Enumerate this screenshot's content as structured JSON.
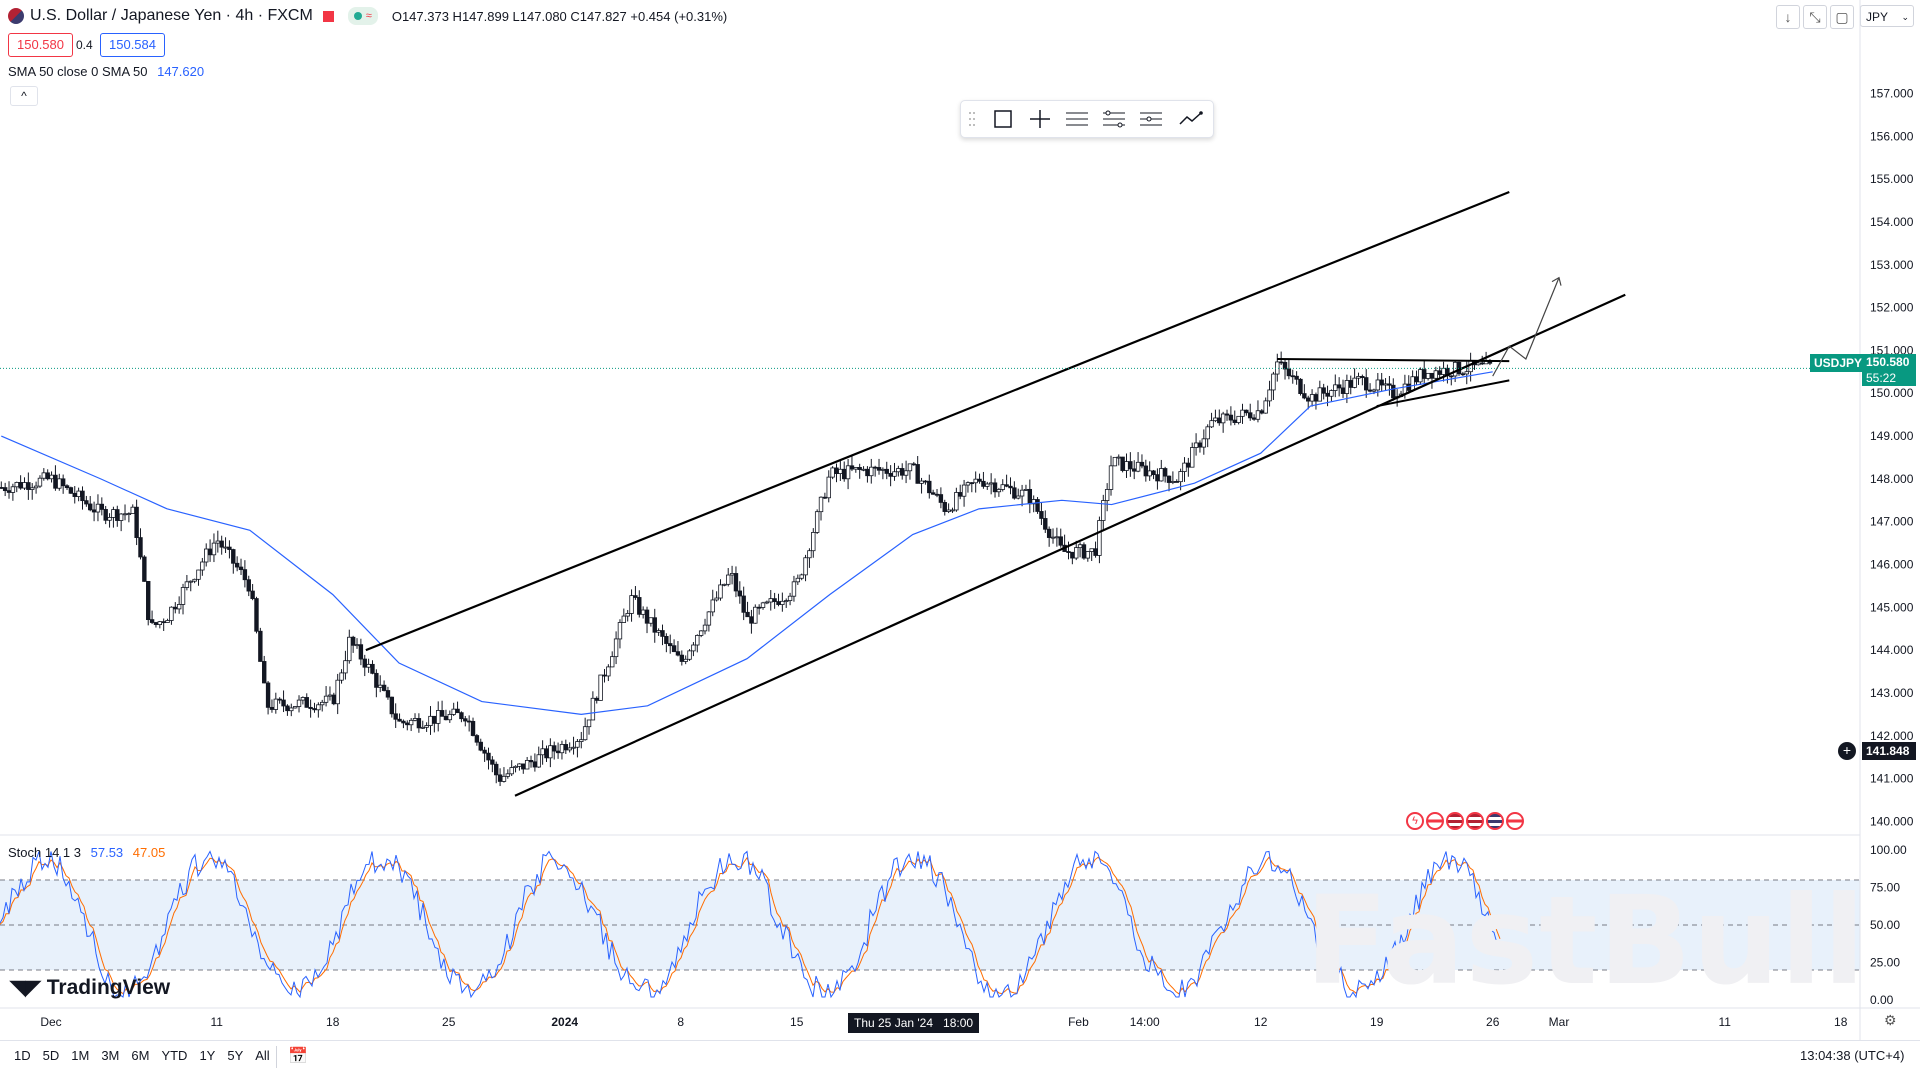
{
  "header": {
    "symbol_title": "U.S. Dollar / Japanese Yen · 4h · FXCM",
    "ohlc": "O147.373  H147.899  L147.080  C147.827  +0.454 (+0.31%)",
    "bid": "150.580",
    "spread": "0.4",
    "ask": "150.584",
    "indicator_label": "SMA 50 close 0 SMA 50",
    "indicator_value": "147.620"
  },
  "currency_select": "JPY",
  "price_badge": {
    "symbol": "USDJPY",
    "price": "150.580",
    "countdown": "55:22"
  },
  "crosshair_badge": "141.848",
  "stoch": {
    "label": "Stoch 14 1 3",
    "k": "57.53",
    "d": "47.05"
  },
  "time_badge": "Thu 25 Jan '24   18:00",
  "range_buttons": [
    "1D",
    "5D",
    "1M",
    "3M",
    "6M",
    "YTD",
    "1Y",
    "5Y",
    "All"
  ],
  "clock": "13:04:38 (UTC+4)",
  "logo": "TradingView",
  "watermark": "FastBull",
  "colors": {
    "up": "#131722",
    "sma": "#2962ff",
    "last_price": "#089981",
    "stoch_k": "#2962ff",
    "stoch_d": "#ff6d00"
  },
  "chart_data": [
    {
      "type": "candlestick",
      "title": "U.S. Dollar / Japanese Yen · 4h · FXCM",
      "ylim": [
        139.8,
        158.6
      ],
      "y_ticks": [
        "140.000",
        "141.000",
        "142.000",
        "143.000",
        "144.000",
        "145.000",
        "146.000",
        "147.000",
        "148.000",
        "149.000",
        "150.000",
        "151.000",
        "152.000",
        "153.000",
        "154.000",
        "155.000",
        "156.000",
        "157.000"
      ],
      "x_ticks": [
        "Dec",
        "11",
        "18",
        "25",
        "2024",
        "8",
        "15",
        "22",
        "Feb",
        "14:00",
        "12",
        "19",
        "26",
        "Mar",
        "11",
        "18"
      ],
      "price_path": [
        {
          "x": "Nov 28",
          "y": 147.8
        },
        {
          "x": "Dec 1",
          "y": 148.0
        },
        {
          "x": "Dec 4",
          "y": 147.2
        },
        {
          "x": "Dec 6",
          "y": 147.2
        },
        {
          "x": "Dec 7",
          "y": 144.5
        },
        {
          "x": "Dec 8",
          "y": 144.8
        },
        {
          "x": "Dec 11",
          "y": 146.6
        },
        {
          "x": "Dec 13",
          "y": 145.5
        },
        {
          "x": "Dec 14",
          "y": 142.7
        },
        {
          "x": "Dec 18",
          "y": 142.8
        },
        {
          "x": "Dec 19",
          "y": 144.2
        },
        {
          "x": "Dec 20",
          "y": 143.7
        },
        {
          "x": "Dec 22",
          "y": 142.3
        },
        {
          "x": "Dec 26",
          "y": 142.5
        },
        {
          "x": "Dec 28",
          "y": 141.0
        },
        {
          "x": "Jan 2",
          "y": 142.0
        },
        {
          "x": "Jan 5",
          "y": 145.2
        },
        {
          "x": "Jan 8",
          "y": 143.7
        },
        {
          "x": "Jan 11",
          "y": 145.8
        },
        {
          "x": "Jan 12",
          "y": 144.7
        },
        {
          "x": "Jan 15",
          "y": 145.5
        },
        {
          "x": "Jan 17",
          "y": 148.1
        },
        {
          "x": "Jan 19",
          "y": 148.2
        },
        {
          "x": "Jan 22",
          "y": 148.2
        },
        {
          "x": "Jan 24",
          "y": 147.3
        },
        {
          "x": "Jan 26",
          "y": 148.0
        },
        {
          "x": "Jan 29",
          "y": 147.6
        },
        {
          "x": "Jan 31",
          "y": 146.3
        },
        {
          "x": "Feb 2",
          "y": 146.3
        },
        {
          "x": "Feb 3",
          "y": 148.4
        },
        {
          "x": "Feb 7",
          "y": 148.0
        },
        {
          "x": "Feb 9",
          "y": 149.3
        },
        {
          "x": "Feb 12",
          "y": 149.6
        },
        {
          "x": "Feb 13",
          "y": 150.7
        },
        {
          "x": "Feb 15",
          "y": 149.9
        },
        {
          "x": "Feb 18",
          "y": 150.3
        },
        {
          "x": "Feb 20",
          "y": 150.0
        },
        {
          "x": "Feb 22",
          "y": 150.5
        },
        {
          "x": "Feb 25",
          "y": 150.6
        },
        {
          "x": "Feb 26",
          "y": 150.58
        }
      ],
      "sma50": [
        {
          "x": "Nov 28",
          "y": 149.0
        },
        {
          "x": "Dec 4",
          "y": 148.0
        },
        {
          "x": "Dec 8",
          "y": 147.3
        },
        {
          "x": "Dec 13",
          "y": 146.8
        },
        {
          "x": "Dec 18",
          "y": 145.3
        },
        {
          "x": "Dec 22",
          "y": 143.7
        },
        {
          "x": "Dec 27",
          "y": 142.8
        },
        {
          "x": "Jan 2",
          "y": 142.5
        },
        {
          "x": "Jan 6",
          "y": 142.7
        },
        {
          "x": "Jan 12",
          "y": 143.8
        },
        {
          "x": "Jan 17",
          "y": 145.3
        },
        {
          "x": "Jan 22",
          "y": 146.7
        },
        {
          "x": "Jan 26",
          "y": 147.3
        },
        {
          "x": "Jan 31",
          "y": 147.5
        },
        {
          "x": "Feb 3",
          "y": 147.4
        },
        {
          "x": "Feb 8",
          "y": 147.9
        },
        {
          "x": "Feb 12",
          "y": 148.6
        },
        {
          "x": "Feb 15",
          "y": 149.7
        },
        {
          "x": "Feb 20",
          "y": 150.1
        },
        {
          "x": "Feb 26",
          "y": 150.5
        }
      ],
      "channel_upper": [
        {
          "x": "Dec 20",
          "y": 144.0
        },
        {
          "x": "Feb 27",
          "y": 154.7
        }
      ],
      "channel_lower": [
        {
          "x": "Dec 29",
          "y": 140.6
        },
        {
          "x": "Mar 5",
          "y": 152.3
        }
      ],
      "triangle_top": [
        {
          "x": "Feb 13",
          "y": 150.8
        },
        {
          "x": "Feb 27",
          "y": 150.75
        }
      ],
      "triangle_bottom": [
        {
          "x": "Feb 19",
          "y": 149.7
        },
        {
          "x": "Feb 27",
          "y": 150.3
        }
      ],
      "projection": [
        {
          "x": "Feb 26",
          "y": 150.4
        },
        {
          "x": "Feb 27",
          "y": 151.1
        },
        {
          "x": "Feb 28",
          "y": 150.8
        },
        {
          "x": "Mar 1",
          "y": 152.7
        }
      ],
      "last_price": 150.58
    },
    {
      "type": "line",
      "title": "Stoch 14 1 3",
      "ylim": [
        0,
        100
      ],
      "y_ticks": [
        "0.00",
        "25.00",
        "50.00",
        "75.00",
        "100.00"
      ],
      "bands": [
        20,
        50,
        80
      ],
      "series": [
        {
          "name": "%K",
          "last": 57.53
        },
        {
          "name": "%D",
          "last": 47.05
        }
      ]
    }
  ]
}
